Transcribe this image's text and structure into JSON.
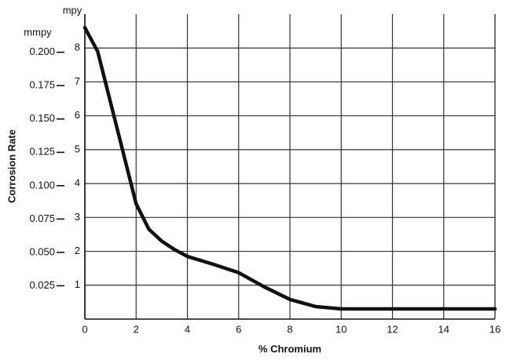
{
  "chart_data": {
    "type": "line",
    "y_label": "Corrosion Rate",
    "x_label": "% Chromium",
    "y_unit": "mpy",
    "y2_unit": "mmpy",
    "x": [
      0,
      0.5,
      1,
      1.5,
      2,
      2.5,
      3,
      3.5,
      4,
      5,
      6,
      7,
      8,
      9,
      10,
      12,
      14,
      16
    ],
    "series": [
      {
        "color": "#111111",
        "values": [
          8.6,
          7.9,
          6.4,
          4.9,
          3.4,
          2.65,
          2.3,
          2.05,
          1.85,
          1.62,
          1.37,
          0.95,
          0.58,
          0.37,
          0.3,
          0.3,
          0.3,
          0.3
        ]
      }
    ],
    "xlim": [
      0,
      16
    ],
    "xticks": [
      0,
      2,
      4,
      6,
      8,
      10,
      12,
      14,
      16
    ],
    "ylim": [
      0,
      9
    ],
    "yticks": [
      1,
      2,
      3,
      4,
      5,
      6,
      7,
      8
    ],
    "y2lim": [
      0,
      0.2286
    ],
    "y2ticks": [
      0.025,
      {
        "value": 0.05,
        "label": "0.050"
      },
      0.075,
      {
        "value": 0.1,
        "label": "0.100"
      },
      0.125,
      {
        "value": 0.15,
        "label": "0.150"
      },
      0.175,
      {
        "value": 0.2,
        "label": "0.200"
      }
    ],
    "grid": true
  }
}
